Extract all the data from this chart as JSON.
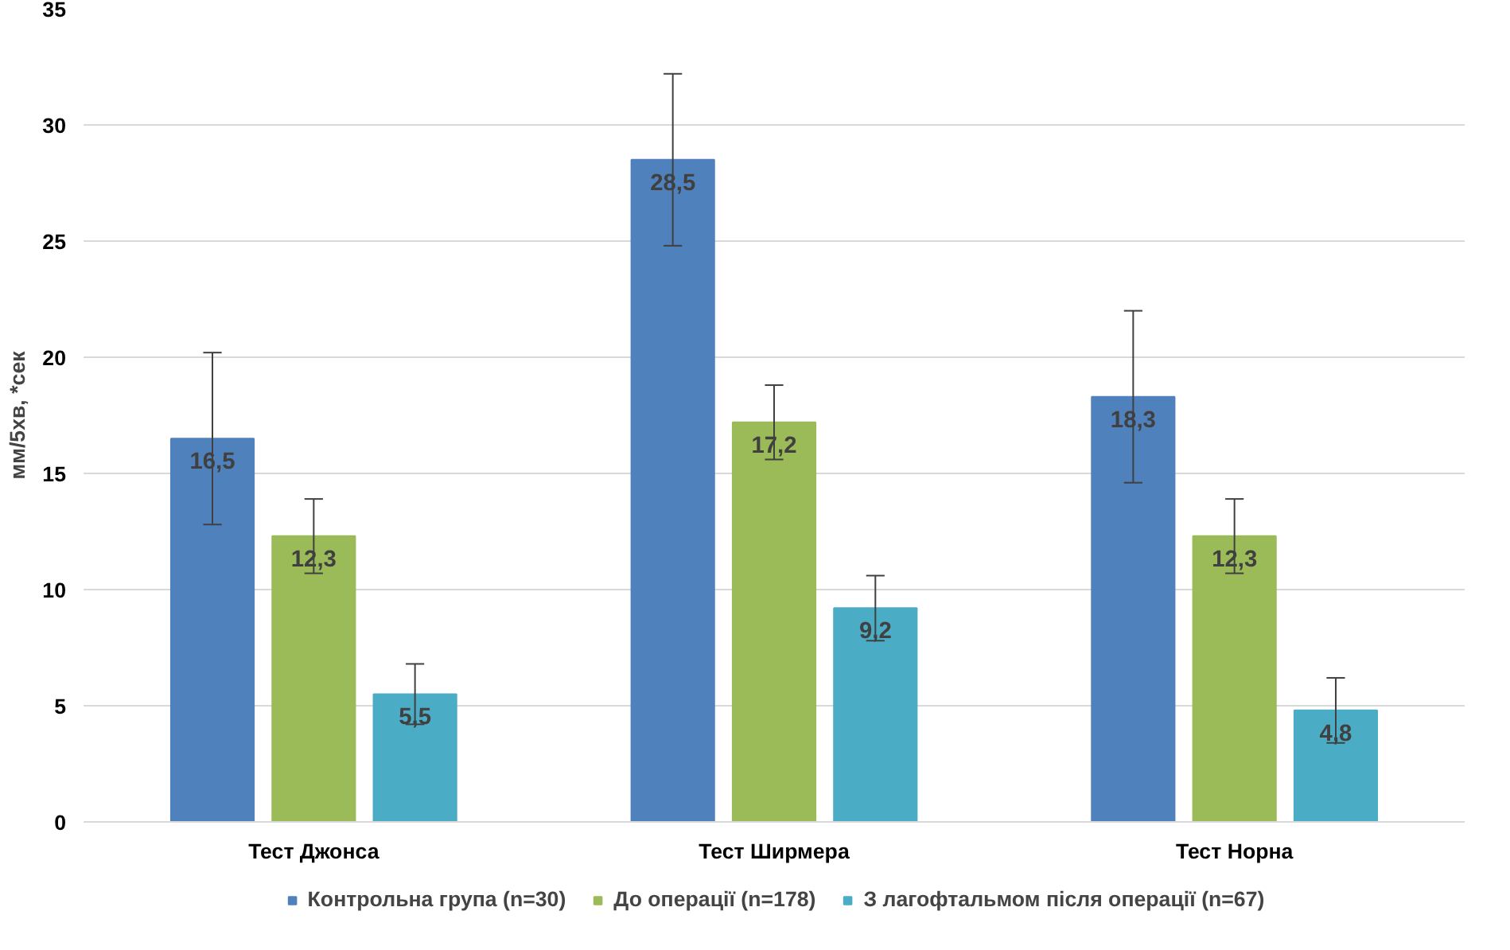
{
  "chart_data": {
    "type": "bar",
    "ylabel": "мм/5хв, *сек",
    "categories": [
      "Тест Джонса",
      "Тест Ширмера",
      "Тест Норна"
    ],
    "series": [
      {
        "name": "Контрольна група (n=30)",
        "color": "#4f81bd",
        "values": [
          16.5,
          28.5,
          18.3
        ],
        "value_labels": [
          "16,5",
          "28,5",
          "18,3"
        ],
        "errors": [
          3.7,
          3.7,
          3.7
        ]
      },
      {
        "name": "До операції (n=178)",
        "color": "#9bbb59",
        "values": [
          12.3,
          17.2,
          12.3
        ],
        "value_labels": [
          "12,3",
          "17,2",
          "12,3"
        ],
        "errors": [
          1.6,
          1.6,
          1.6
        ]
      },
      {
        "name": "З лагофтальмом після операції (n=67)",
        "color": "#4bacc6",
        "values": [
          5.5,
          9.2,
          4.8
        ],
        "value_labels": [
          "5,5",
          "9,2",
          "4,8"
        ],
        "errors": [
          1.3,
          1.4,
          1.4
        ]
      }
    ],
    "ylim": [
      0,
      35
    ],
    "yticks": [
      0,
      5,
      10,
      15,
      20,
      25,
      30,
      35
    ],
    "grid": "y",
    "legend": "bottom"
  }
}
